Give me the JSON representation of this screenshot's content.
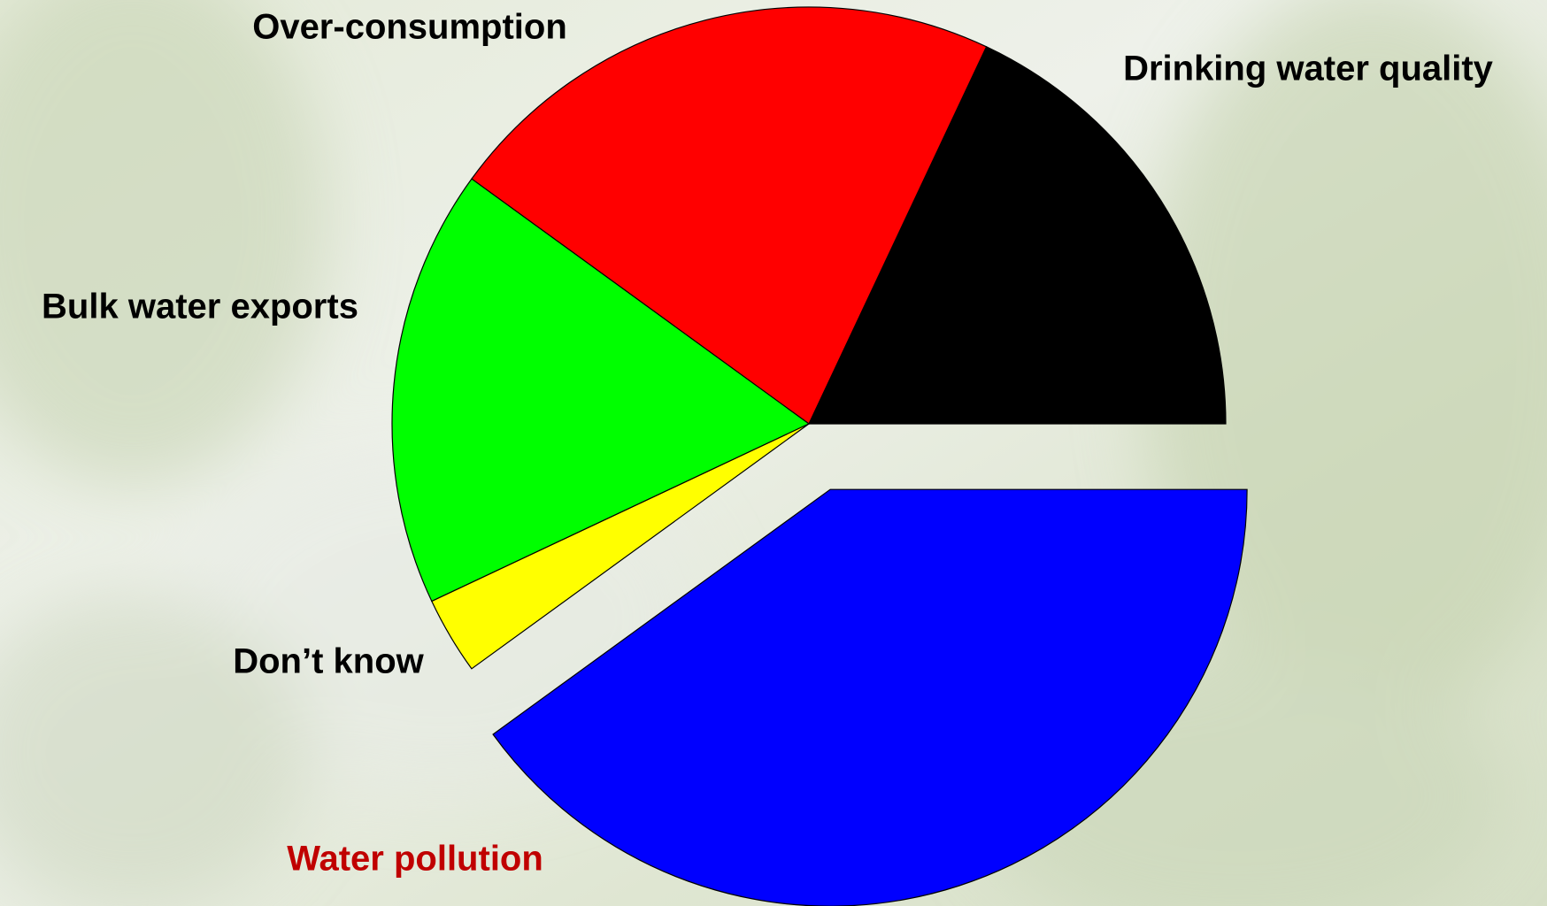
{
  "chart_data": {
    "type": "pie",
    "categories": [
      "Drinking water quality",
      "Over-consumption",
      "Bulk water exports",
      "Don’t know",
      "Water pollution"
    ],
    "values": [
      18,
      22,
      17,
      3,
      40
    ],
    "colors": [
      "#000000",
      "#ff0000",
      "#00ff00",
      "#ffff00",
      "#0000ff"
    ],
    "label_colors": [
      "#000000",
      "#000000",
      "#000000",
      "#000000",
      "#c00000"
    ],
    "exploded": [
      false,
      false,
      false,
      false,
      true
    ]
  }
}
